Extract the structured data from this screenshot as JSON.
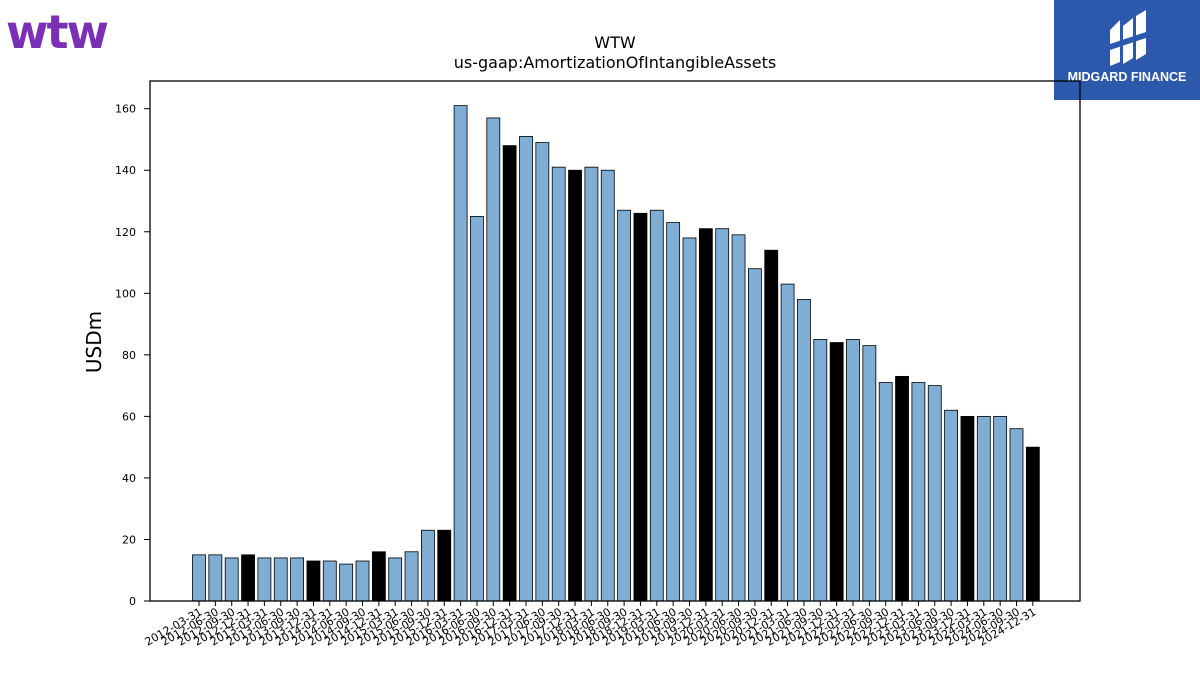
{
  "brand": {
    "logo_text": "wtw",
    "logo_color": "#7b2fb5"
  },
  "partner": {
    "name": "MIDGARD FINANCE",
    "bg_color": "#2d59ad"
  },
  "colors": {
    "bar_default": "#7fadd4",
    "bar_highlight": "#000000",
    "edge": "#000000"
  },
  "chart_data": {
    "type": "bar",
    "title": "WTW",
    "subtitle": "us-gaap:AmortizationOfIntangibleAssets",
    "xlabel": "",
    "ylabel": "USDm",
    "ylim": [
      0,
      169
    ],
    "yticks": [
      0,
      20,
      40,
      60,
      80,
      100,
      120,
      140,
      160
    ],
    "grid": false,
    "categories": [
      "2012-03-31",
      "2012-06-30",
      "2012-09-30",
      "2012-12-31",
      "2013-03-31",
      "2013-06-30",
      "2013-09-30",
      "2013-12-31",
      "2014-03-31",
      "2014-06-30",
      "2014-09-30",
      "2014-12-31",
      "2015-03-31",
      "2015-06-30",
      "2015-09-30",
      "2015-12-31",
      "2016-03-31",
      "2016-06-30",
      "2016-09-30",
      "2016-12-31",
      "2017-03-31",
      "2017-06-30",
      "2017-09-30",
      "2017-12-31",
      "2018-03-31",
      "2018-06-30",
      "2018-09-30",
      "2018-12-31",
      "2019-03-31",
      "2019-06-30",
      "2019-09-30",
      "2019-12-31",
      "2020-03-31",
      "2020-06-30",
      "2020-09-30",
      "2020-12-31",
      "2021-03-31",
      "2021-06-30",
      "2021-09-30",
      "2021-12-31",
      "2022-03-31",
      "2022-06-30",
      "2022-09-30",
      "2022-12-31",
      "2023-03-31",
      "2023-06-30",
      "2023-09-30",
      "2023-12-31",
      "2024-03-31",
      "2024-06-30",
      "2024-09-30",
      "2024-12-31"
    ],
    "values": [
      15,
      15,
      14,
      15,
      14,
      14,
      14,
      13,
      13,
      12,
      13,
      16,
      14,
      16,
      23,
      23,
      161,
      125,
      157,
      148,
      151,
      149,
      141,
      140,
      141,
      140,
      127,
      126,
      127,
      123,
      118,
      121,
      121,
      119,
      108,
      114,
      103,
      98,
      85,
      84,
      85,
      83,
      71,
      73,
      71,
      70,
      62,
      60,
      60,
      60,
      56,
      50
    ],
    "highlighted": [
      "2012-12-31",
      "2013-12-31",
      "2014-12-31",
      "2015-12-31",
      "2016-12-31",
      "2017-12-31",
      "2018-12-31",
      "2019-12-31",
      "2020-12-31",
      "2021-12-31",
      "2022-12-31",
      "2023-12-31",
      "2024-12-31"
    ]
  }
}
